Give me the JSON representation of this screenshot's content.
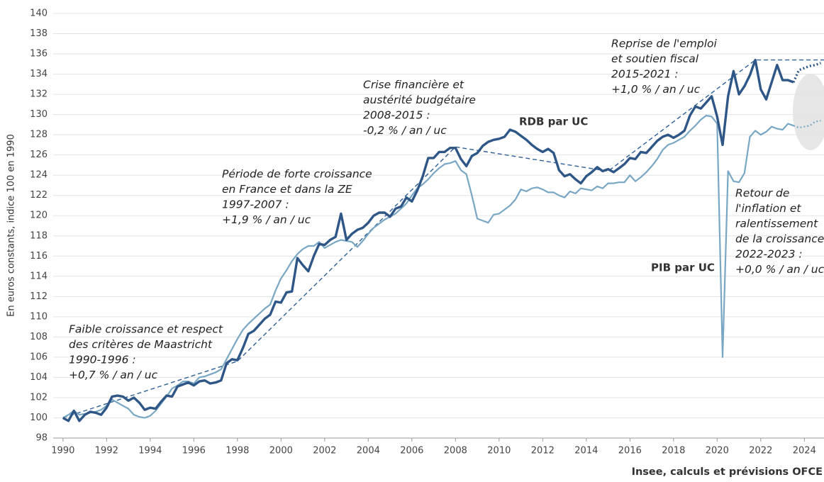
{
  "chart_data": {
    "type": "line",
    "y_label": "En euros constants, indice 100 en 1990",
    "source": "Insee, calculs et prévisions OFCE",
    "xlim": [
      1989.55,
      2024.9
    ],
    "ylim": [
      98,
      140
    ],
    "xticks": [
      1990,
      1992,
      1994,
      1996,
      1998,
      2000,
      2002,
      2004,
      2006,
      2008,
      2010,
      2012,
      2014,
      2016,
      2018,
      2020,
      2022,
      2024
    ],
    "yticks": [
      98,
      100,
      102,
      104,
      106,
      108,
      110,
      112,
      114,
      116,
      118,
      120,
      122,
      124,
      126,
      128,
      130,
      132,
      134,
      136,
      138,
      140
    ],
    "grid": true,
    "dotted_from": 2023.5,
    "x": [
      1990,
      1990.25,
      1990.5,
      1990.75,
      1991,
      1991.25,
      1991.5,
      1991.75,
      1992,
      1992.25,
      1992.5,
      1992.75,
      1993,
      1993.25,
      1993.5,
      1993.75,
      1994,
      1994.25,
      1994.5,
      1994.75,
      1995,
      1995.25,
      1995.5,
      1995.75,
      1996,
      1996.25,
      1996.5,
      1996.75,
      1997,
      1997.25,
      1997.5,
      1997.75,
      1998,
      1998.25,
      1998.5,
      1998.75,
      1999,
      1999.25,
      1999.5,
      1999.75,
      2000,
      2000.25,
      2000.5,
      2000.75,
      2001,
      2001.25,
      2001.5,
      2001.75,
      2002,
      2002.25,
      2002.5,
      2002.75,
      2003,
      2003.25,
      2003.5,
      2003.75,
      2004,
      2004.25,
      2004.5,
      2004.75,
      2005,
      2005.25,
      2005.5,
      2005.75,
      2006,
      2006.25,
      2006.5,
      2006.75,
      2007,
      2007.25,
      2007.5,
      2007.75,
      2008,
      2008.25,
      2008.5,
      2008.75,
      2009,
      2009.25,
      2009.5,
      2009.75,
      2010,
      2010.25,
      2010.5,
      2010.75,
      2011,
      2011.25,
      2011.5,
      2011.75,
      2012,
      2012.25,
      2012.5,
      2012.75,
      2013,
      2013.25,
      2013.5,
      2013.75,
      2014,
      2014.25,
      2014.5,
      2014.75,
      2015,
      2015.25,
      2015.5,
      2015.75,
      2016,
      2016.25,
      2016.5,
      2016.75,
      2017,
      2017.25,
      2017.5,
      2017.75,
      2018,
      2018.25,
      2018.5,
      2018.75,
      2019,
      2019.25,
      2019.5,
      2019.75,
      2020,
      2020.25,
      2020.5,
      2020.75,
      2021,
      2021.25,
      2021.5,
      2021.75,
      2022,
      2022.25,
      2022.5,
      2022.75,
      2023,
      2023.25,
      2023.5,
      2023.75,
      2024,
      2024.25,
      2024.5,
      2024.75
    ],
    "series": [
      {
        "name": "PIB par UC",
        "color": "#79a7c3",
        "width": 2.2,
        "values": [
          100,
          100.3,
          100.7,
          100.3,
          100.4,
          100.5,
          100.6,
          100.8,
          101.2,
          101.8,
          101.5,
          101.2,
          100.9,
          100.3,
          100.1,
          100.0,
          100.2,
          100.7,
          101.4,
          102.1,
          102.9,
          103.2,
          103.6,
          103.6,
          103.4,
          104.0,
          104.1,
          104.3,
          104.5,
          104.8,
          105.8,
          106.8,
          107.8,
          108.7,
          109.3,
          109.8,
          110.3,
          110.8,
          111.2,
          112.6,
          113.8,
          114.6,
          115.5,
          116.2,
          116.7,
          117.0,
          117.0,
          117.4,
          116.8,
          117.1,
          117.4,
          117.6,
          117.5,
          117.4,
          116.9,
          117.5,
          118.2,
          118.8,
          119.2,
          119.6,
          119.9,
          120.2,
          120.7,
          121.2,
          122.0,
          122.7,
          123.1,
          123.6,
          124.2,
          124.7,
          125.1,
          125.2,
          125.4,
          124.5,
          124.1,
          122.0,
          119.7,
          119.5,
          119.3,
          120.1,
          120.2,
          120.6,
          121.0,
          121.6,
          122.6,
          122.4,
          122.7,
          122.8,
          122.6,
          122.3,
          122.3,
          122.0,
          121.8,
          122.4,
          122.2,
          122.7,
          122.6,
          122.5,
          122.9,
          122.7,
          123.2,
          123.2,
          123.3,
          123.3,
          124.0,
          123.4,
          123.8,
          124.3,
          124.9,
          125.6,
          126.5,
          127.0,
          127.2,
          127.5,
          127.8,
          128.4,
          128.9,
          129.5,
          129.9,
          129.8,
          129.1,
          106.0,
          124.4,
          123.4,
          123.3,
          124.2,
          127.8,
          128.4,
          128.0,
          128.3,
          128.8,
          128.6,
          128.5,
          129.1,
          128.9,
          128.7,
          128.8,
          128.9,
          129.3,
          129.4
        ]
      },
      {
        "name": "RDB par UC",
        "color": "#2e5686",
        "width": 3.4,
        "values": [
          100,
          99.7,
          100.7,
          99.7,
          100.3,
          100.6,
          100.5,
          100.3,
          101,
          102.1,
          102.2,
          102.1,
          101.7,
          102,
          101.5,
          100.8,
          101,
          100.9,
          101.6,
          102.2,
          102.1,
          103.1,
          103.3,
          103.5,
          103.2,
          103.6,
          103.7,
          103.4,
          103.5,
          103.7,
          105.4,
          105.8,
          105.7,
          106.9,
          108.3,
          108.6,
          109.2,
          109.8,
          110.2,
          111.5,
          111.4,
          112.4,
          112.5,
          115.8,
          115.1,
          114.5,
          116.0,
          117.2,
          117.1,
          117.6,
          117.9,
          120.2,
          117.6,
          118.2,
          118.6,
          118.8,
          119.3,
          120.0,
          120.3,
          120.3,
          119.9,
          120.7,
          120.9,
          121.8,
          121.4,
          122.5,
          123.9,
          125.7,
          125.7,
          126.3,
          126.3,
          126.7,
          126.7,
          125.6,
          124.9,
          125.9,
          126.2,
          126.9,
          127.3,
          127.5,
          127.6,
          127.8,
          128.5,
          128.3,
          127.9,
          127.5,
          127.0,
          126.6,
          126.3,
          126.6,
          126.2,
          124.5,
          123.9,
          124.1,
          123.6,
          123.2,
          123.9,
          124.3,
          124.8,
          124.4,
          124.6,
          124.3,
          124.7,
          125.1,
          125.7,
          125.6,
          126.3,
          126.2,
          126.8,
          127.4,
          127.8,
          128.0,
          127.7,
          128.0,
          128.4,
          129.9,
          130.8,
          130.6,
          131.2,
          131.8,
          129.8,
          127.0,
          131.8,
          134.3,
          132.0,
          132.8,
          133.9,
          135.4,
          132.5,
          131.5,
          133.2,
          134.9,
          133.4,
          133.4,
          133.2,
          134.4,
          134.6,
          134.8,
          134.9,
          135.1
        ]
      }
    ],
    "trend": {
      "color": "#2e5f96",
      "x": [
        1990,
        1998,
        2008,
        2015,
        2021.75,
        2024.9
      ],
      "values": [
        100,
        105.6,
        126.8,
        124.4,
        135.4,
        135.4
      ]
    },
    "annotations": [
      {
        "lines": [
          "Faible croissance et respect",
          "des critères de Maastricht",
          "1990-1996 :",
          "+0,7 % / an / uc"
        ]
      },
      {
        "lines": [
          "Période de forte croissance",
          "en France et dans la ZE",
          "1997-2007 :",
          "+1,9 % / an / uc"
        ]
      },
      {
        "lines": [
          "Crise financière et",
          "austérité budgétaire",
          "2008-2015 :",
          "-0,2 % / an / uc"
        ]
      },
      {
        "lines": [
          "Reprise de l'emploi",
          "et soutien fiscal",
          "2015-2021 :",
          "+1,0 % / an / uc"
        ]
      },
      {
        "lines": [
          "Retour de",
          "l'inflation et",
          "ralentissement",
          "de la croissance",
          "2022-2023 :",
          "+0,0 % / an / uc"
        ]
      }
    ]
  }
}
